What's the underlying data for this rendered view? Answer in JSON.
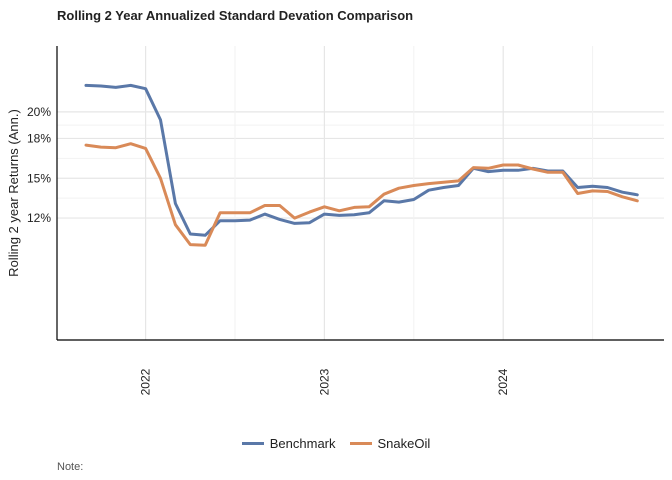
{
  "chart_data": {
    "type": "line",
    "title": "Rolling 2 Year Annualized Standard Devation Comparison",
    "xlabel": "",
    "ylabel": "Rolling 2 year Returns (Ann.)",
    "x_tick_labels": [
      "2022",
      "2023",
      "2024"
    ],
    "y_tick_labels": [
      "12%",
      "15%",
      "18%",
      "20%"
    ],
    "grid": true,
    "legend_position": "bottom",
    "note": "Note:",
    "x": [
      "2021-09",
      "2021-10",
      "2021-11",
      "2021-12",
      "2022-01",
      "2022-02",
      "2022-03",
      "2022-04",
      "2022-05",
      "2022-06",
      "2022-07",
      "2022-08",
      "2022-09",
      "2022-10",
      "2022-11",
      "2022-12",
      "2023-01",
      "2023-02",
      "2023-03",
      "2023-04",
      "2023-05",
      "2023-06",
      "2023-07",
      "2023-08",
      "2023-09",
      "2023-10",
      "2023-11",
      "2023-12",
      "2024-01",
      "2024-02",
      "2024-03",
      "2024-04",
      "2024-05",
      "2024-06",
      "2024-07",
      "2024-08",
      "2024-09",
      "2024-10",
      "2024-11"
    ],
    "series": [
      {
        "name": "Benchmark",
        "color": "#5a78a8",
        "values": [
          22.0,
          21.95,
          21.85,
          22.0,
          21.75,
          19.4,
          13.1,
          10.8,
          10.7,
          11.8,
          11.8,
          11.85,
          12.3,
          11.9,
          11.6,
          11.65,
          12.3,
          12.2,
          12.25,
          12.4,
          13.3,
          13.2,
          13.4,
          14.1,
          14.3,
          14.45,
          15.75,
          15.5,
          15.6,
          15.6,
          15.75,
          15.55,
          15.55,
          14.3,
          14.4,
          14.3,
          13.95,
          13.75,
          null
        ]
      },
      {
        "name": "SnakeOil",
        "color": "#d98a58",
        "values": [
          17.5,
          17.35,
          17.3,
          17.6,
          17.25,
          15.0,
          11.5,
          10.0,
          9.95,
          12.4,
          12.4,
          12.4,
          12.95,
          12.95,
          12.0,
          12.45,
          12.85,
          12.55,
          12.8,
          12.85,
          13.8,
          14.25,
          14.45,
          14.6,
          14.7,
          14.8,
          15.8,
          15.75,
          16.0,
          16.0,
          15.7,
          15.45,
          15.45,
          13.85,
          14.05,
          14.0,
          13.6,
          13.3,
          null
        ]
      }
    ]
  }
}
